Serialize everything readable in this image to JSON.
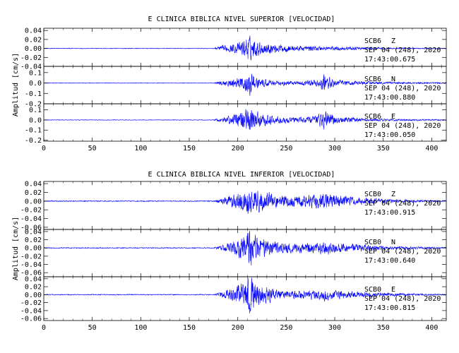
{
  "chart_data": [
    {
      "type": "line",
      "title": "E CLINICA BIBLICA NIVEL SUPERIOR [VELOCIDAD]",
      "ylabel": "Amplitud [cm/s]",
      "xlim": [
        0,
        415
      ],
      "xticks": [
        "0",
        "50",
        "100",
        "150",
        "200",
        "250",
        "300",
        "350",
        "400"
      ],
      "line_color": "#0000ff",
      "panels": [
        {
          "label_station": "SCB6",
          "label_comp": "Z",
          "label_date": "SEP 04 (248), 2020",
          "label_time": "17:43:00.675",
          "ylim": [
            -0.04,
            0.045
          ],
          "yticks": [
            "0.04",
            "0.02",
            "0.00",
            "-0.02",
            "-0.04"
          ],
          "envelope_x": [
            0,
            175,
            180,
            195,
            205,
            210,
            220,
            240,
            260,
            280,
            300,
            330,
            360,
            415
          ],
          "envelope_y": [
            0.001,
            0.001,
            0.006,
            0.012,
            0.02,
            0.038,
            0.02,
            0.012,
            0.008,
            0.007,
            0.006,
            0.004,
            0.002,
            0.001
          ]
        },
        {
          "label_station": "SCB6",
          "label_comp": "N",
          "label_date": "SEP 04 (248), 2020",
          "label_time": "17:43:00.880",
          "ylim": [
            -0.2,
            0.16
          ],
          "yticks": [
            "0.1",
            "0.0",
            "-0.1",
            "-0.2"
          ],
          "envelope_x": [
            0,
            175,
            180,
            195,
            205,
            212,
            222,
            240,
            260,
            280,
            290,
            300,
            330,
            360,
            415
          ],
          "envelope_y": [
            0.004,
            0.004,
            0.02,
            0.05,
            0.08,
            0.15,
            0.06,
            0.03,
            0.025,
            0.04,
            0.11,
            0.04,
            0.02,
            0.012,
            0.008
          ]
        },
        {
          "label_station": "SCB6",
          "label_comp": "E",
          "label_date": "SEP 04 (248), 2020",
          "label_time": "17:43:00.050",
          "ylim": [
            -0.21,
            0.16
          ],
          "yticks": [
            "0.1",
            "0.0",
            "-0.1",
            "-0.2"
          ],
          "envelope_x": [
            0,
            175,
            180,
            195,
            205,
            212,
            222,
            240,
            260,
            280,
            290,
            300,
            330,
            360,
            415
          ],
          "envelope_y": [
            0.004,
            0.004,
            0.02,
            0.06,
            0.13,
            0.15,
            0.09,
            0.05,
            0.03,
            0.05,
            0.12,
            0.05,
            0.02,
            0.012,
            0.008
          ]
        }
      ]
    },
    {
      "type": "line",
      "title": "E CLINICA BIBLICA NIVEL INFERIOR [VELOCIDAD]",
      "ylabel": "Amplitud [cm/s]",
      "xlim": [
        0,
        415
      ],
      "xticks": [
        "0",
        "50",
        "100",
        "150",
        "200",
        "250",
        "300",
        "350",
        "400"
      ],
      "line_color": "#0000ff",
      "panels": [
        {
          "label_station": "SCB0",
          "label_comp": "Z",
          "label_date": "SEP 04 (248), 2020",
          "label_time": "17:43:00.915",
          "ylim": [
            -0.065,
            0.045
          ],
          "yticks": [
            "0.04",
            "0.02",
            "0.00",
            "-0.02",
            "-0.04",
            "-0.06"
          ],
          "envelope_x": [
            0,
            175,
            180,
            195,
            205,
            212,
            222,
            240,
            260,
            280,
            290,
            300,
            330,
            360,
            415
          ],
          "envelope_y": [
            0.0015,
            0.0015,
            0.006,
            0.02,
            0.03,
            0.04,
            0.03,
            0.02,
            0.016,
            0.02,
            0.022,
            0.018,
            0.01,
            0.005,
            0.002
          ]
        },
        {
          "label_station": "SCB0",
          "label_comp": "N",
          "label_date": "SEP 04 (248), 2020",
          "label_time": "17:43:00.640",
          "ylim": [
            -0.07,
            0.045
          ],
          "yticks": [
            "0.04",
            "0.02",
            "0.00",
            "-0.02",
            "-0.04",
            "-0.06"
          ],
          "envelope_x": [
            0,
            175,
            180,
            195,
            205,
            212,
            222,
            240,
            260,
            280,
            290,
            300,
            330,
            360,
            415
          ],
          "envelope_y": [
            0.0015,
            0.0015,
            0.006,
            0.02,
            0.035,
            0.06,
            0.035,
            0.018,
            0.014,
            0.018,
            0.022,
            0.016,
            0.01,
            0.005,
            0.002
          ]
        },
        {
          "label_station": "SCB0",
          "label_comp": "E",
          "label_date": "SEP 04 (248), 2020",
          "label_time": "17:43:00.815",
          "ylim": [
            -0.065,
            0.045
          ],
          "yticks": [
            "0.04",
            "0.02",
            "0.00",
            "-0.02",
            "-0.04",
            "-0.06"
          ],
          "envelope_x": [
            0,
            175,
            180,
            195,
            205,
            212,
            222,
            240,
            260,
            280,
            290,
            300,
            330,
            360,
            415
          ],
          "envelope_y": [
            0.0015,
            0.0015,
            0.006,
            0.02,
            0.04,
            0.06,
            0.035,
            0.016,
            0.012,
            0.016,
            0.02,
            0.014,
            0.009,
            0.005,
            0.002
          ]
        }
      ]
    }
  ]
}
